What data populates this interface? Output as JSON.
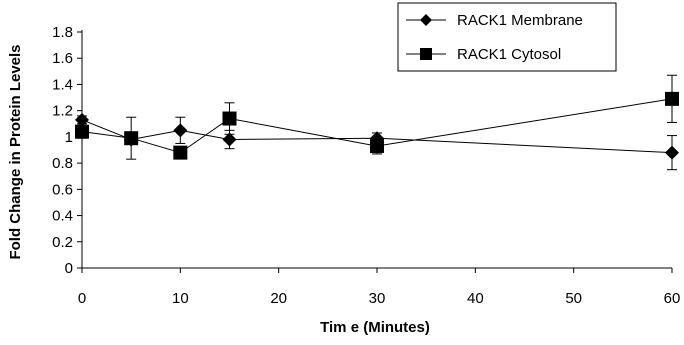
{
  "chart_data": {
    "type": "line",
    "x": [
      0,
      5,
      10,
      15,
      30,
      60
    ],
    "xlim": [
      0,
      60
    ],
    "ylim": [
      0,
      1.8
    ],
    "xticks": [
      "0",
      "10",
      "20",
      "30",
      "40",
      "50",
      "60"
    ],
    "yticks": [
      "0",
      "0.2",
      "0.4",
      "0.6",
      "0.8",
      "1",
      "1.2",
      "1.4",
      "1.6",
      "1.8"
    ],
    "xlabel": "Tim e (Minutes)",
    "ylabel": "Fold Change in Protein Levels",
    "legend_position": "top-right",
    "grid": false,
    "series": [
      {
        "name": "RACK1 Membrane",
        "marker": "diamond",
        "values": [
          1.13,
          0.98,
          1.05,
          0.98,
          0.99,
          0.88
        ],
        "error": [
          0.03,
          0.03,
          0.1,
          0.07,
          0.04,
          0.13
        ]
      },
      {
        "name": "RACK1 Cytosol",
        "marker": "square",
        "values": [
          1.04,
          0.99,
          0.88,
          1.14,
          0.93,
          1.29
        ],
        "error": [
          0.05,
          0.16,
          0.04,
          0.12,
          0.06,
          0.18
        ]
      }
    ]
  }
}
